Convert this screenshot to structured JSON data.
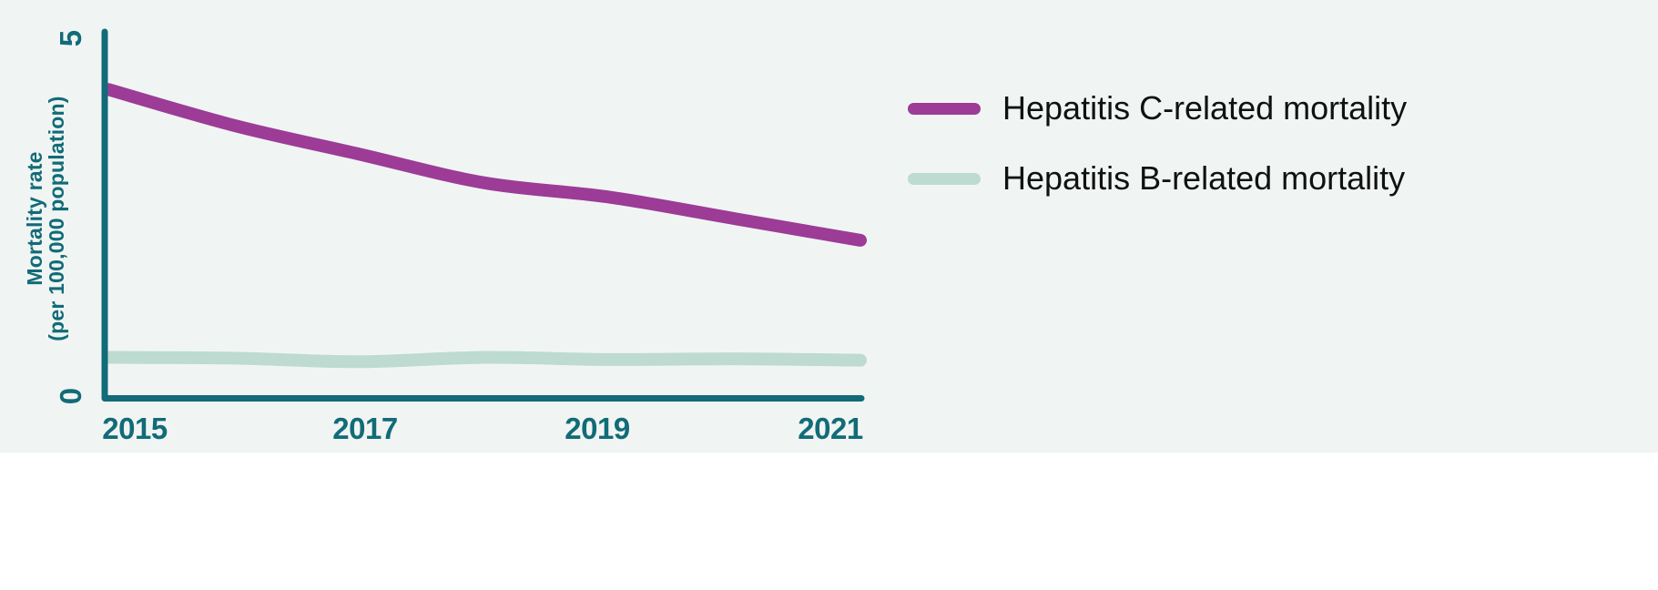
{
  "chart": {
    "ylabel_line1": "Mortality rate",
    "ylabel_line2": "(per 100,000 population)",
    "y_tick_top": "5",
    "y_tick_bottom": "0",
    "x_ticks": [
      "2015",
      "2017",
      "2019",
      "2021"
    ]
  },
  "colors": {
    "background": "#F0F5F3",
    "lower_band": "#FFFFFF",
    "axis": "#126B78",
    "tick_text": "#126B78",
    "legend_text": "#111111",
    "hep_c_line": "#9C3C97",
    "hep_b_line": "#BDDBD0"
  },
  "chart_data": {
    "type": "line",
    "x": [
      2015,
      2016,
      2017,
      2018,
      2019,
      2020,
      2021
    ],
    "series": [
      {
        "name": "Hepatitis C-related mortality",
        "color": "#9C3C97",
        "values": [
          4.3,
          3.8,
          3.4,
          3.0,
          2.8,
          2.5,
          2.2
        ]
      },
      {
        "name": "Hepatitis B-related mortality",
        "color": "#BDDBD0",
        "values": [
          0.57,
          0.56,
          0.51,
          0.57,
          0.54,
          0.55,
          0.53
        ]
      }
    ],
    "title": "",
    "xlabel": "",
    "ylabel": "Mortality rate (per 100,000 population)",
    "ylim": [
      0,
      5
    ],
    "y_ticks_shown": [
      0,
      5
    ],
    "x_ticks_shown": [
      2015,
      2017,
      2019,
      2021
    ],
    "grid": false,
    "legend_position": "right"
  }
}
